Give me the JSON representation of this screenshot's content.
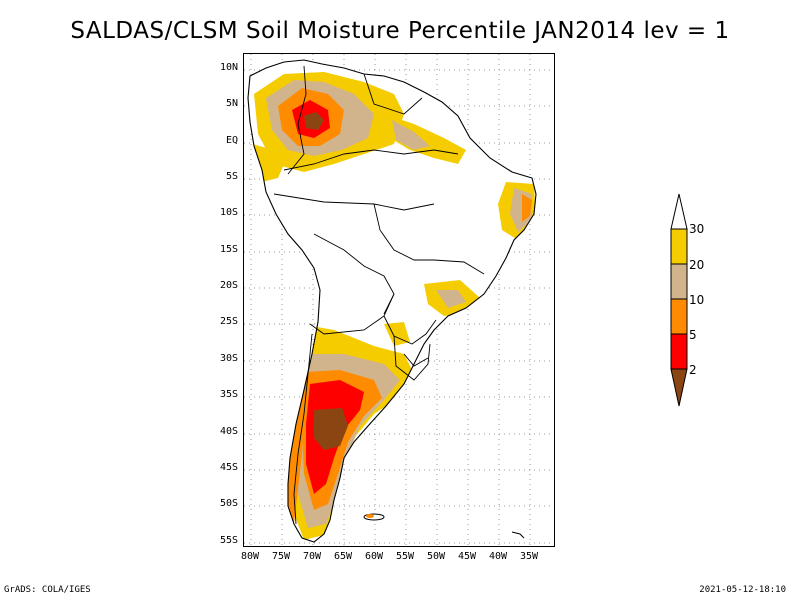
{
  "title": "SALDAS/CLSM Soil Moisture Percentile JAN2014 lev = 1",
  "lat_labels": [
    "10N",
    "5N",
    "EQ",
    "5S",
    "10S",
    "15S",
    "20S",
    "25S",
    "30S",
    "35S",
    "40S",
    "45S",
    "50S",
    "55S"
  ],
  "lon_labels": [
    "80W",
    "75W",
    "70W",
    "65W",
    "60W",
    "55W",
    "50W",
    "45W",
    "40W",
    "35W"
  ],
  "legend": {
    "labels": [
      "30",
      "20",
      "10",
      "5",
      "2"
    ],
    "colors": {
      "above30": "#ffffff",
      "c20_30": "#f5cc00",
      "c10_20": "#d2b48c",
      "c5_10": "#ff8c00",
      "c2_5": "#ff0000",
      "below2": "#8b4513"
    }
  },
  "footer": {
    "left": "GrADS: COLA/IGES",
    "right": "2021-05-12-18:10"
  }
}
